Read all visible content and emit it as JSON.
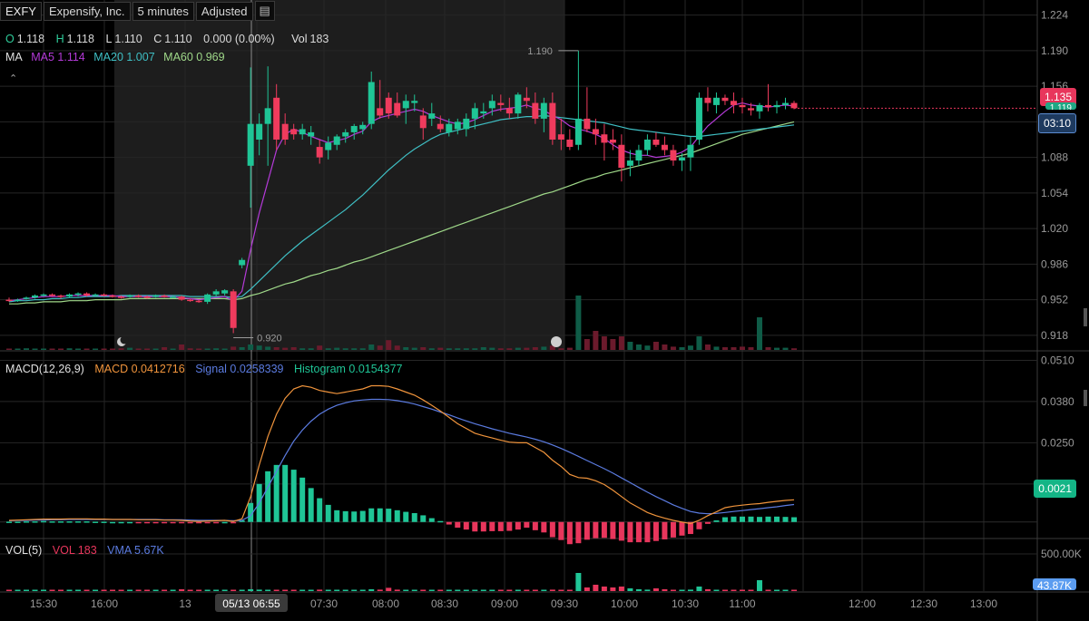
{
  "topbar": {
    "symbol": "EXFY",
    "company": "Expensify, Inc.",
    "interval": "5 minutes",
    "adjustment": "Adjusted",
    "menu_icon": "document-icon"
  },
  "ohlc": {
    "o_label": "O",
    "o_value": "1.118",
    "h_label": "H",
    "h_value": "1.118",
    "l_label": "L",
    "l_value": "1.110",
    "c_label": "C",
    "c_value": "1.110",
    "change": "0.000 (0.00%)",
    "vol_label": "Vol",
    "vol_value": "183"
  },
  "ma_legend": {
    "label": "MA",
    "ma5": "MA5 1.114",
    "ma20": "MA20 1.007",
    "ma60": "MA60 0.969"
  },
  "macd_legend": {
    "label": "MACD(12,26,9)",
    "macd": "MACD 0.0412716",
    "signal": "Signal 0.0258339",
    "histogram": "Histogram 0.0154377"
  },
  "vol_legend": {
    "label": "VOL(5)",
    "vol": "VOL 183",
    "vma": "VMA 5.67K"
  },
  "price_badges": {
    "last": "1.135",
    "partial": "1.119",
    "countdown": "03:10"
  },
  "macd_badge": "0.0021",
  "vol_badge": "43.87K",
  "colors": {
    "up": "#26a69a",
    "down": "#ef3b5d",
    "ma5": "#b43ad8",
    "ma20": "#3fbfc4",
    "ma60": "#9fd889",
    "macd": "#f0943c",
    "signal": "#5b7be0",
    "hist_up": "#1fc596",
    "hist_down": "#e8365c",
    "last_badge": "#e8365c",
    "countdown_badge": "#1e3a5f",
    "macd_badge": "#14b586",
    "vol_badge": "#5b9cf0"
  },
  "chart_data": {
    "type": "candlestick",
    "price_axis": {
      "ticks": [
        "1.224",
        "1.190",
        "1.156",
        "1.122",
        "1.088",
        "1.054",
        "1.020",
        "0.986",
        "0.952",
        "0.918"
      ],
      "range": [
        0.904,
        1.228
      ]
    },
    "macd_axis": {
      "ticks": [
        "0.0510",
        "0.0380",
        "0.0250",
        "0.0120"
      ],
      "range": [
        -0.0035,
        0.052
      ]
    },
    "vol_axis": {
      "ticks": [
        "500.00K"
      ]
    },
    "time_axis": {
      "labels": [
        "15:30",
        "16:00",
        "13",
        "05/13 06:55",
        "07:30",
        "08:00",
        "08:30",
        "09:00",
        "09:30",
        "10:00",
        "10:30",
        "11:00",
        "12:00",
        "12:30",
        "13:00"
      ],
      "highlighted": "05/13 06:55"
    },
    "annotations": [
      {
        "label": "1.190",
        "type": "high"
      },
      {
        "label": "0.920",
        "type": "low"
      }
    ],
    "candles": [
      [
        0.952,
        0.954,
        0.95,
        0.951
      ],
      [
        0.951,
        0.953,
        0.95,
        0.952
      ],
      [
        0.953,
        0.955,
        0.952,
        0.954
      ],
      [
        0.954,
        0.957,
        0.953,
        0.956
      ],
      [
        0.956,
        0.958,
        0.955,
        0.957
      ],
      [
        0.957,
        0.958,
        0.955,
        0.956
      ],
      [
        0.956,
        0.957,
        0.953,
        0.955
      ],
      [
        0.955,
        0.958,
        0.954,
        0.957
      ],
      [
        0.957,
        0.959,
        0.955,
        0.958
      ],
      [
        0.958,
        0.959,
        0.955,
        0.956
      ],
      [
        0.956,
        0.958,
        0.955,
        0.957
      ],
      [
        0.957,
        0.958,
        0.955,
        0.956
      ],
      [
        0.956,
        0.957,
        0.954,
        0.955
      ],
      [
        0.955,
        0.956,
        0.953,
        0.954
      ],
      [
        0.955,
        0.957,
        0.954,
        0.956
      ],
      [
        0.956,
        0.957,
        0.954,
        0.955
      ],
      [
        0.955,
        0.956,
        0.953,
        0.954
      ],
      [
        0.955,
        0.957,
        0.954,
        0.956
      ],
      [
        0.956,
        0.957,
        0.954,
        0.955
      ],
      [
        0.955,
        0.956,
        0.954,
        0.955
      ],
      [
        0.955,
        0.956,
        0.951,
        0.952
      ],
      [
        0.952,
        0.953,
        0.95,
        0.951
      ],
      [
        0.951,
        0.952,
        0.949,
        0.95
      ],
      [
        0.95,
        0.958,
        0.948,
        0.957
      ],
      [
        0.957,
        0.962,
        0.955,
        0.96
      ],
      [
        0.958,
        0.962,
        0.956,
        0.961
      ],
      [
        0.96,
        0.962,
        0.92,
        0.925
      ],
      [
        0.985,
        0.992,
        0.982,
        0.99
      ],
      [
        1.08,
        1.174,
        1.04,
        1.12
      ],
      [
        1.105,
        1.13,
        1.09,
        1.12
      ],
      [
        1.12,
        1.175,
        1.08,
        1.135
      ],
      [
        1.145,
        1.158,
        1.095,
        1.105
      ],
      [
        1.12,
        1.13,
        1.1,
        1.105
      ],
      [
        1.115,
        1.12,
        1.105,
        1.11
      ],
      [
        1.11,
        1.12,
        1.105,
        1.115
      ],
      [
        1.108,
        1.118,
        1.1,
        1.112
      ],
      [
        1.098,
        1.105,
        1.082,
        1.088
      ],
      [
        1.095,
        1.108,
        1.086,
        1.102
      ],
      [
        1.1,
        1.11,
        1.095,
        1.108
      ],
      [
        1.108,
        1.115,
        1.102,
        1.112
      ],
      [
        1.112,
        1.12,
        1.105,
        1.118
      ],
      [
        1.115,
        1.122,
        1.11,
        1.119
      ],
      [
        1.12,
        1.17,
        1.115,
        1.16
      ],
      [
        1.135,
        1.162,
        1.125,
        1.128
      ],
      [
        1.145,
        1.15,
        1.125,
        1.13
      ],
      [
        1.14,
        1.15,
        1.126,
        1.128
      ],
      [
        1.135,
        1.148,
        1.12,
        1.142
      ],
      [
        1.14,
        1.148,
        1.132,
        1.142
      ],
      [
        1.128,
        1.135,
        1.105,
        1.116
      ],
      [
        1.125,
        1.14,
        1.118,
        1.13
      ],
      [
        1.12,
        1.128,
        1.112,
        1.115
      ],
      [
        1.112,
        1.125,
        1.108,
        1.12
      ],
      [
        1.115,
        1.125,
        1.11,
        1.122
      ],
      [
        1.115,
        1.13,
        1.108,
        1.125
      ],
      [
        1.125,
        1.14,
        1.115,
        1.135
      ],
      [
        1.13,
        1.14,
        1.125,
        1.132
      ],
      [
        1.135,
        1.148,
        1.128,
        1.142
      ],
      [
        1.14,
        1.148,
        1.132,
        1.138
      ],
      [
        1.135,
        1.145,
        1.125,
        1.13
      ],
      [
        1.13,
        1.15,
        1.125,
        1.148
      ],
      [
        1.145,
        1.155,
        1.135,
        1.142
      ],
      [
        1.14,
        1.15,
        1.12,
        1.125
      ],
      [
        1.125,
        1.145,
        1.112,
        1.14
      ],
      [
        1.14,
        1.15,
        1.1,
        1.105
      ],
      [
        1.11,
        1.125,
        1.095,
        1.105
      ],
      [
        1.105,
        1.115,
        1.095,
        1.098
      ],
      [
        1.1,
        1.19,
        1.095,
        1.125
      ],
      [
        1.125,
        1.155,
        1.112,
        1.115
      ],
      [
        1.115,
        1.125,
        1.1,
        1.11
      ],
      [
        1.11,
        1.12,
        1.085,
        1.102
      ],
      [
        1.105,
        1.115,
        1.095,
        1.102
      ],
      [
        1.1,
        1.11,
        1.065,
        1.078
      ],
      [
        1.08,
        1.095,
        1.07,
        1.085
      ],
      [
        1.085,
        1.1,
        1.08,
        1.095
      ],
      [
        1.095,
        1.11,
        1.09,
        1.105
      ],
      [
        1.105,
        1.112,
        1.098,
        1.1
      ],
      [
        1.1,
        1.108,
        1.09,
        1.095
      ],
      [
        1.095,
        1.1,
        1.08,
        1.085
      ],
      [
        1.085,
        1.092,
        1.075,
        1.088
      ],
      [
        1.088,
        1.108,
        1.075,
        1.1
      ],
      [
        1.105,
        1.15,
        1.1,
        1.145
      ],
      [
        1.145,
        1.155,
        1.132,
        1.14
      ],
      [
        1.138,
        1.15,
        1.13,
        1.145
      ],
      [
        1.145,
        1.148,
        1.138,
        1.142
      ],
      [
        1.142,
        1.15,
        1.13,
        1.138
      ],
      [
        1.138,
        1.145,
        1.13,
        1.136
      ],
      [
        1.135,
        1.14,
        1.128,
        1.133
      ],
      [
        1.132,
        1.14,
        1.125,
        1.138
      ],
      [
        1.138,
        1.158,
        1.132,
        1.136
      ],
      [
        1.136,
        1.142,
        1.13,
        1.138
      ],
      [
        1.138,
        1.145,
        1.134,
        1.14
      ],
      [
        1.14,
        1.142,
        1.134,
        1.135
      ]
    ],
    "ma5": [
      0.951,
      0.952,
      0.953,
      0.954,
      0.955,
      0.955,
      0.955,
      0.956,
      0.956,
      0.956,
      0.956,
      0.956,
      0.956,
      0.955,
      0.955,
      0.955,
      0.955,
      0.955,
      0.955,
      0.955,
      0.954,
      0.953,
      0.952,
      0.953,
      0.954,
      0.955,
      0.951,
      0.96,
      1.0,
      1.035,
      1.065,
      1.095,
      1.11,
      1.115,
      1.112,
      1.108,
      1.105,
      1.102,
      1.104,
      1.106,
      1.11,
      1.113,
      1.122,
      1.126,
      1.128,
      1.13,
      1.132,
      1.134,
      1.132,
      1.128,
      1.125,
      1.122,
      1.12,
      1.121,
      1.124,
      1.128,
      1.132,
      1.134,
      1.135,
      1.136,
      1.138,
      1.135,
      1.133,
      1.128,
      1.124,
      1.118,
      1.115,
      1.113,
      1.11,
      1.106,
      1.1,
      1.095,
      1.092,
      1.09,
      1.09,
      1.088,
      1.089,
      1.09,
      1.093,
      1.098,
      1.108,
      1.118,
      1.125,
      1.132,
      1.138,
      1.14,
      1.138,
      1.137,
      1.136,
      1.137,
      1.138,
      1.137
    ],
    "ma20": [
      0.95,
      0.951,
      0.951,
      0.952,
      0.952,
      0.953,
      0.953,
      0.954,
      0.954,
      0.955,
      0.955,
      0.955,
      0.955,
      0.956,
      0.956,
      0.956,
      0.956,
      0.956,
      0.956,
      0.956,
      0.956,
      0.955,
      0.955,
      0.955,
      0.955,
      0.955,
      0.954,
      0.955,
      0.962,
      0.97,
      0.978,
      0.986,
      0.994,
      1.001,
      1.008,
      1.014,
      1.02,
      1.026,
      1.032,
      1.038,
      1.045,
      1.052,
      1.06,
      1.068,
      1.076,
      1.083,
      1.09,
      1.096,
      1.101,
      1.106,
      1.11,
      1.112,
      1.114,
      1.116,
      1.118,
      1.12,
      1.122,
      1.124,
      1.125,
      1.126,
      1.127,
      1.127,
      1.128,
      1.127,
      1.126,
      1.125,
      1.124,
      1.123,
      1.122,
      1.121,
      1.119,
      1.117,
      1.115,
      1.114,
      1.113,
      1.112,
      1.111,
      1.11,
      1.109,
      1.108,
      1.108,
      1.109,
      1.11,
      1.111,
      1.112,
      1.113,
      1.114,
      1.115,
      1.116,
      1.117,
      1.118,
      1.119
    ],
    "ma60": [
      0.948,
      0.948,
      0.949,
      0.949,
      0.95,
      0.95,
      0.95,
      0.951,
      0.951,
      0.951,
      0.952,
      0.952,
      0.952,
      0.952,
      0.953,
      0.953,
      0.953,
      0.953,
      0.953,
      0.953,
      0.953,
      0.953,
      0.953,
      0.953,
      0.953,
      0.953,
      0.952,
      0.953,
      0.956,
      0.958,
      0.961,
      0.964,
      0.967,
      0.969,
      0.972,
      0.975,
      0.977,
      0.98,
      0.982,
      0.985,
      0.988,
      0.99,
      0.993,
      0.996,
      0.999,
      1.002,
      1.005,
      1.008,
      1.011,
      1.014,
      1.017,
      1.02,
      1.023,
      1.026,
      1.029,
      1.032,
      1.035,
      1.038,
      1.041,
      1.044,
      1.047,
      1.05,
      1.053,
      1.055,
      1.058,
      1.061,
      1.064,
      1.067,
      1.069,
      1.072,
      1.074,
      1.076,
      1.078,
      1.08,
      1.082,
      1.084,
      1.086,
      1.088,
      1.09,
      1.092,
      1.095,
      1.098,
      1.101,
      1.104,
      1.107,
      1.11,
      1.112,
      1.114,
      1.116,
      1.118,
      1.12,
      1.122
    ],
    "volume": [
      0.02,
      0.02,
      0.03,
      0.02,
      0.02,
      0.02,
      0.02,
      0.03,
      0.02,
      0.02,
      0.02,
      0.02,
      0.02,
      0.03,
      0.04,
      0.02,
      0.02,
      0.02,
      0.05,
      0.02,
      0.1,
      0.03,
      0.02,
      0.02,
      0.03,
      0.02,
      0.06,
      0.05,
      0.1,
      0.08,
      0.06,
      0.05,
      0.04,
      0.05,
      0.03,
      0.03,
      0.08,
      0.03,
      0.04,
      0.03,
      0.03,
      0.03,
      0.1,
      0.08,
      0.18,
      0.08,
      0.05,
      0.04,
      0.05,
      0.03,
      0.04,
      0.03,
      0.03,
      0.03,
      0.03,
      0.05,
      0.04,
      0.03,
      0.03,
      0.04,
      0.04,
      0.05,
      0.06,
      0.08,
      0.03,
      0.04,
      1.0,
      0.2,
      0.35,
      0.25,
      0.2,
      0.25,
      0.15,
      0.1,
      0.08,
      0.15,
      0.1,
      0.06,
      0.05,
      0.08,
      0.25,
      0.1,
      0.06,
      0.05,
      0.05,
      0.06,
      0.05,
      0.6,
      0.05,
      0.04,
      0.04,
      0.03
    ],
    "macd": [
      0.0005,
      0.0006,
      0.0007,
      0.0008,
      0.0009,
      0.0009,
      0.0009,
      0.001,
      0.001,
      0.001,
      0.0009,
      0.0009,
      0.0008,
      0.0008,
      0.0008,
      0.0007,
      0.0007,
      0.0007,
      0.0006,
      0.0006,
      0.0005,
      0.0003,
      0.0002,
      0.0003,
      0.0004,
      0.0005,
      0.0002,
      0.001,
      0.008,
      0.018,
      0.027,
      0.034,
      0.039,
      0.042,
      0.043,
      0.0425,
      0.0415,
      0.041,
      0.0405,
      0.041,
      0.0415,
      0.042,
      0.043,
      0.043,
      0.0428,
      0.042,
      0.041,
      0.04,
      0.0385,
      0.0368,
      0.035,
      0.033,
      0.031,
      0.0295,
      0.028,
      0.0272,
      0.0265,
      0.0258,
      0.0252,
      0.025,
      0.025,
      0.0235,
      0.022,
      0.0195,
      0.0175,
      0.015,
      0.014,
      0.0138,
      0.013,
      0.0118,
      0.01,
      0.008,
      0.006,
      0.0045,
      0.003,
      0.002,
      0.0012,
      0.0005,
      0.0,
      -0.0005,
      0.0005,
      0.002,
      0.0032,
      0.0045,
      0.005,
      0.0053,
      0.0056,
      0.0058,
      0.0062,
      0.0065,
      0.0068,
      0.007
    ],
    "signal": [
      0.0004,
      0.0005,
      0.0005,
      0.0006,
      0.0006,
      0.0007,
      0.0007,
      0.0008,
      0.0008,
      0.0008,
      0.0008,
      0.0008,
      0.0008,
      0.0008,
      0.0008,
      0.0008,
      0.0008,
      0.0008,
      0.0007,
      0.0007,
      0.0007,
      0.0006,
      0.0005,
      0.0005,
      0.0005,
      0.0005,
      0.0004,
      0.0005,
      0.002,
      0.006,
      0.011,
      0.016,
      0.021,
      0.0255,
      0.029,
      0.0318,
      0.034,
      0.0356,
      0.0368,
      0.0376,
      0.0382,
      0.0385,
      0.0387,
      0.0387,
      0.0386,
      0.0383,
      0.0378,
      0.0372,
      0.0364,
      0.0356,
      0.0347,
      0.0338,
      0.0328,
      0.0319,
      0.031,
      0.0302,
      0.0294,
      0.0287,
      0.028,
      0.0274,
      0.0268,
      0.0261,
      0.0253,
      0.0243,
      0.0232,
      0.022,
      0.0207,
      0.0194,
      0.0181,
      0.0168,
      0.0154,
      0.0139,
      0.0124,
      0.0109,
      0.0094,
      0.008,
      0.0067,
      0.0054,
      0.0043,
      0.0033,
      0.0028,
      0.0026,
      0.0027,
      0.003,
      0.0033,
      0.0036,
      0.0039,
      0.0042,
      0.0045,
      0.0048,
      0.0052,
      0.0055
    ]
  }
}
